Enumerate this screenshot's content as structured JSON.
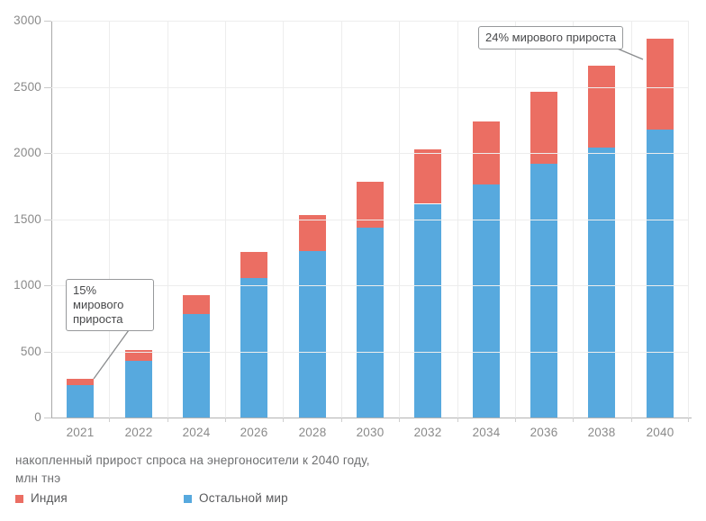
{
  "chart_data": {
    "type": "bar",
    "stacked": true,
    "categories": [
      "2021",
      "2022",
      "2024",
      "2026",
      "2028",
      "2030",
      "2032",
      "2034",
      "2036",
      "2038",
      "2040"
    ],
    "series": [
      {
        "name": "Остальной мир",
        "color": "#57A9DE",
        "values": [
          245,
          430,
          780,
          1055,
          1260,
          1435,
          1615,
          1760,
          1915,
          2040,
          2175
        ]
      },
      {
        "name": "Индия",
        "color": "#EB6E63",
        "values": [
          45,
          80,
          145,
          200,
          270,
          345,
          410,
          480,
          545,
          620,
          690
        ]
      }
    ],
    "ylim": [
      0,
      3000
    ],
    "yticks": [
      0,
      500,
      1000,
      1500,
      2000,
      2500,
      3000
    ],
    "grid": true,
    "legend_position": "bottom",
    "annotations": [
      {
        "text": "15% мирового прироста",
        "target_year": "2021"
      },
      {
        "text": "24% мирового прироста",
        "target_year": "2040"
      }
    ],
    "caption": {
      "line1": "накопленный прирост спроса на энергоносители к 2040 году,",
      "line2": "млн тнэ"
    }
  },
  "legend": {
    "items": [
      {
        "label": "Индия",
        "color": "#EB6E63"
      },
      {
        "label": "Остальной мир",
        "color": "#57A9DE"
      }
    ]
  }
}
